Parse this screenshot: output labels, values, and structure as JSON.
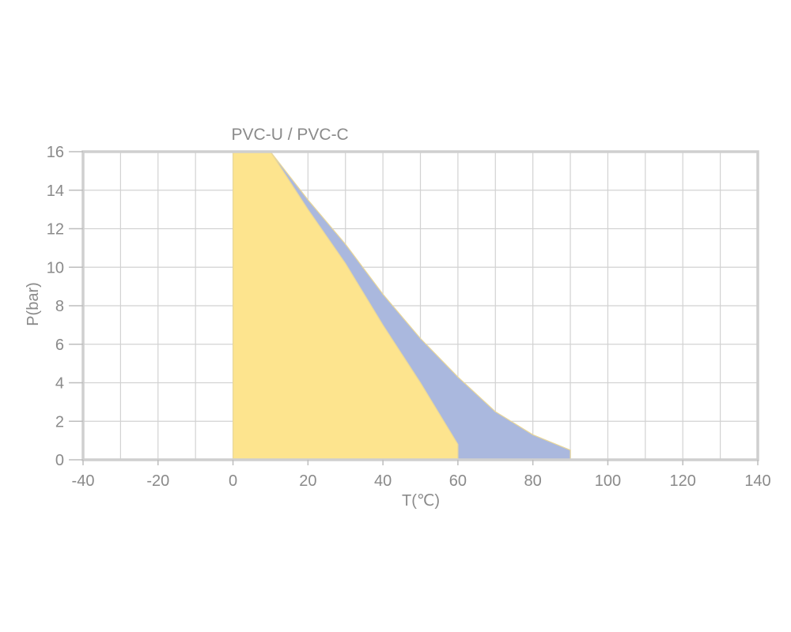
{
  "chart_data": {
    "type": "area",
    "title": "PVC-U / PVC-C",
    "xlabel": "T(℃)",
    "ylabel": "P(bar)",
    "xlim": [
      -40,
      140
    ],
    "ylim": [
      0,
      16
    ],
    "x_ticks": [
      -40,
      -20,
      0,
      20,
      40,
      60,
      80,
      100,
      120,
      140
    ],
    "y_ticks": [
      0,
      2,
      4,
      6,
      8,
      10,
      12,
      14,
      16
    ],
    "grid": true,
    "series": [
      {
        "color": "#aab8de",
        "points": [
          [
            10,
            16
          ],
          [
            20,
            13.5
          ],
          [
            30,
            11.2
          ],
          [
            40,
            8.6
          ],
          [
            50,
            6.3
          ],
          [
            60,
            4.3
          ],
          [
            70,
            2.5
          ],
          [
            80,
            1.3
          ],
          [
            90,
            0.5
          ],
          [
            90,
            0
          ],
          [
            0,
            0
          ],
          [
            0,
            16
          ]
        ]
      },
      {
        "color": "#fde48e",
        "points": [
          [
            0,
            0
          ],
          [
            0,
            16
          ],
          [
            10,
            16
          ],
          [
            20,
            13.0
          ],
          [
            30,
            10.2
          ],
          [
            40,
            7.0
          ],
          [
            50,
            4.0
          ],
          [
            60,
            0.8
          ],
          [
            60,
            0
          ]
        ]
      }
    ]
  }
}
